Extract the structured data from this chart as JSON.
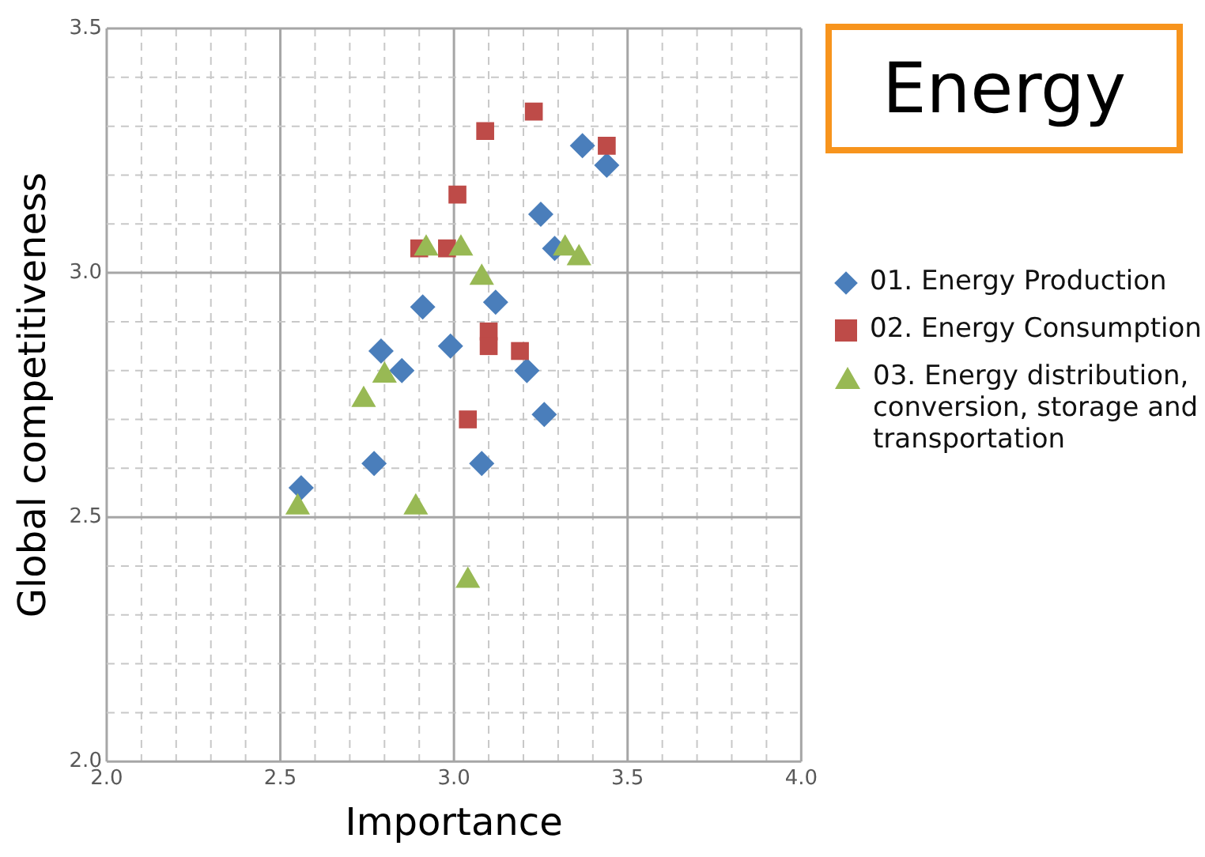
{
  "chart_data": {
    "type": "scatter",
    "title": "Energy",
    "xlabel": "Importance",
    "ylabel": "Global competitiveness",
    "legend": "right",
    "grid": true,
    "xlim": [
      2.0,
      4.0
    ],
    "ylim": [
      2.0,
      3.5
    ],
    "xticks": [
      {
        "value": 2.0,
        "label": "2.0"
      },
      {
        "value": 2.1,
        "label": null
      },
      {
        "value": 2.2,
        "label": null
      },
      {
        "value": 2.3,
        "label": null
      },
      {
        "value": 2.4,
        "label": null
      },
      {
        "value": 2.5,
        "label": "2.5"
      },
      {
        "value": 2.6,
        "label": null
      },
      {
        "value": 2.7,
        "label": null
      },
      {
        "value": 2.8,
        "label": null
      },
      {
        "value": 2.9,
        "label": null
      },
      {
        "value": 3.0,
        "label": "3.0"
      },
      {
        "value": 3.1,
        "label": null
      },
      {
        "value": 3.2,
        "label": null
      },
      {
        "value": 3.3,
        "label": null
      },
      {
        "value": 3.4,
        "label": null
      },
      {
        "value": 3.5,
        "label": "3.5"
      },
      {
        "value": 3.6,
        "label": null
      },
      {
        "value": 3.7,
        "label": null
      },
      {
        "value": 3.8,
        "label": null
      },
      {
        "value": 3.9,
        "label": null
      },
      {
        "value": 4.0,
        "label": "4.0"
      }
    ],
    "yticks": [
      {
        "value": 2.0,
        "label": "2.0"
      },
      {
        "value": 2.1,
        "label": null
      },
      {
        "value": 2.2,
        "label": null
      },
      {
        "value": 2.3,
        "label": null
      },
      {
        "value": 2.4,
        "label": null
      },
      {
        "value": 2.5,
        "label": "2.5"
      },
      {
        "value": 2.6,
        "label": null
      },
      {
        "value": 2.7,
        "label": null
      },
      {
        "value": 2.8,
        "label": null
      },
      {
        "value": 2.9,
        "label": null
      },
      {
        "value": 3.0,
        "label": "3.0"
      },
      {
        "value": 3.1,
        "label": null
      },
      {
        "value": 3.2,
        "label": null
      },
      {
        "value": 3.3,
        "label": null
      },
      {
        "value": 3.4,
        "label": null
      },
      {
        "value": 3.5,
        "label": "3.5"
      }
    ],
    "series": [
      {
        "name": "01. Energy Production",
        "color": "#4a7ebb",
        "marker": "diamond",
        "x": [
          2.56,
          2.77,
          2.79,
          2.85,
          2.91,
          2.99,
          3.12,
          3.08,
          3.21,
          3.26,
          3.29,
          3.25,
          3.37,
          3.44
        ],
        "values": [
          2.56,
          2.61,
          2.84,
          2.8,
          2.93,
          2.85,
          2.94,
          2.61,
          2.8,
          2.71,
          3.05,
          3.12,
          3.26,
          3.22
        ]
      },
      {
        "name": "02. Energy Consumption",
        "color": "#be4b48",
        "marker": "square",
        "x": [
          2.9,
          2.98,
          3.01,
          3.09,
          3.23,
          3.44,
          3.1,
          3.1,
          3.19,
          3.04
        ],
        "values": [
          3.05,
          3.05,
          3.16,
          3.29,
          3.33,
          3.26,
          2.88,
          2.85,
          2.84,
          2.7
        ]
      },
      {
        "name": "03. Energy distribution, conversion, storage and transportation",
        "color": "#98b954",
        "marker": "triangle",
        "x": [
          2.55,
          2.89,
          2.74,
          2.8,
          2.92,
          3.02,
          3.08,
          3.04,
          3.32,
          3.36
        ],
        "values": [
          2.52,
          2.52,
          2.74,
          2.79,
          3.05,
          3.05,
          2.99,
          2.37,
          3.05,
          3.03
        ]
      }
    ]
  }
}
